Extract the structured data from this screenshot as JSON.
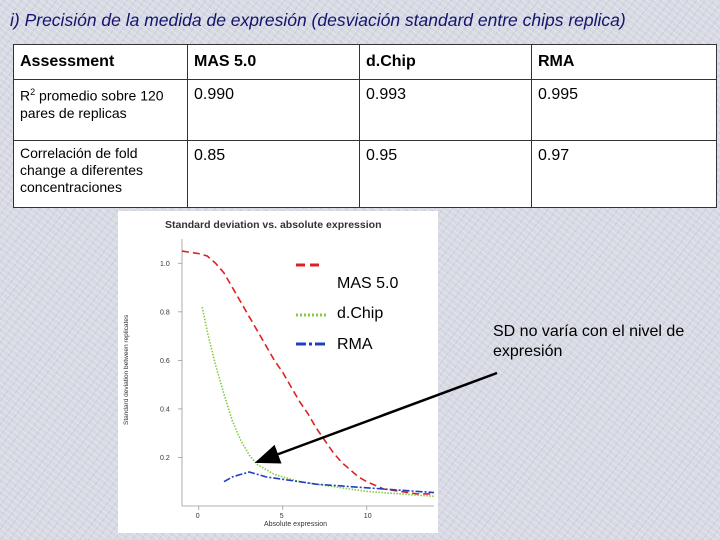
{
  "slide": {
    "title": "i) Precisión de la medida de expresión (desviación standard entre chips replica)",
    "note": "SD no varía con el nivel de expresión"
  },
  "table": {
    "headers": [
      "Assessment",
      "MAS 5.0",
      "d.Chip",
      "RMA"
    ],
    "rows": [
      {
        "label_base": "R",
        "label_sup": "2",
        "label_rest": " promedio sobre 120 pares de replicas",
        "values": [
          "0.990",
          "0.993",
          "0.995"
        ]
      },
      {
        "label": "Correlación de fold change a diferentes concentraciones",
        "values": [
          "0.85",
          "0.95",
          "0.97"
        ]
      }
    ]
  },
  "chart_data": {
    "type": "line",
    "title": "Standard deviation vs. absolute expression",
    "xlabel": "Absolute expression",
    "ylabel": "Standard deviation between replicates",
    "xlim": [
      -1,
      14
    ],
    "ylim": [
      0,
      1.1
    ],
    "x_ticks": [
      "0",
      "5",
      "10"
    ],
    "y_ticks": [
      "0.2",
      "0.4",
      "0.6",
      "0.8",
      "1.0"
    ],
    "legend": {
      "placement": "top-right",
      "entries": [
        "MAS 5.0",
        "d.Chip",
        "RMA"
      ]
    },
    "series": [
      {
        "name": "MAS 5.0",
        "color": "#e02020",
        "dash": "long-dash",
        "x": [
          -1.5,
          0,
          0.5,
          1,
          1.5,
          2,
          2.5,
          3,
          3.5,
          4,
          4.5,
          5,
          5.5,
          6,
          6.5,
          7,
          7.5,
          8,
          8.5,
          9,
          9.5,
          10,
          11,
          12,
          13,
          14
        ],
        "y": [
          1.05,
          1.04,
          1.03,
          1.0,
          0.96,
          0.9,
          0.84,
          0.78,
          0.72,
          0.66,
          0.6,
          0.55,
          0.49,
          0.43,
          0.38,
          0.32,
          0.27,
          0.22,
          0.18,
          0.15,
          0.12,
          0.1,
          0.07,
          0.06,
          0.05,
          0.05
        ]
      },
      {
        "name": "d.Chip",
        "color": "#80cc40",
        "dash": "dotted",
        "x": [
          0.2,
          0.5,
          1,
          1.5,
          2,
          2.5,
          3,
          3.5,
          4,
          4.5,
          5,
          6,
          7,
          8,
          9,
          10,
          12,
          14
        ],
        "y": [
          0.82,
          0.72,
          0.58,
          0.46,
          0.35,
          0.27,
          0.21,
          0.17,
          0.15,
          0.13,
          0.12,
          0.1,
          0.09,
          0.08,
          0.07,
          0.06,
          0.05,
          0.04
        ]
      },
      {
        "name": "RMA",
        "color": "#2040c0",
        "dash": "dash-dot",
        "x": [
          1.5,
          2,
          2.5,
          3,
          3.5,
          4,
          5,
          6,
          7,
          8,
          9,
          10,
          11,
          12,
          13,
          14
        ],
        "y": [
          0.1,
          0.12,
          0.13,
          0.14,
          0.13,
          0.12,
          0.11,
          0.1,
          0.09,
          0.085,
          0.08,
          0.075,
          0.07,
          0.065,
          0.06,
          0.055
        ]
      }
    ]
  },
  "colors": {
    "title": "#14146e",
    "arrow": "#000000"
  }
}
